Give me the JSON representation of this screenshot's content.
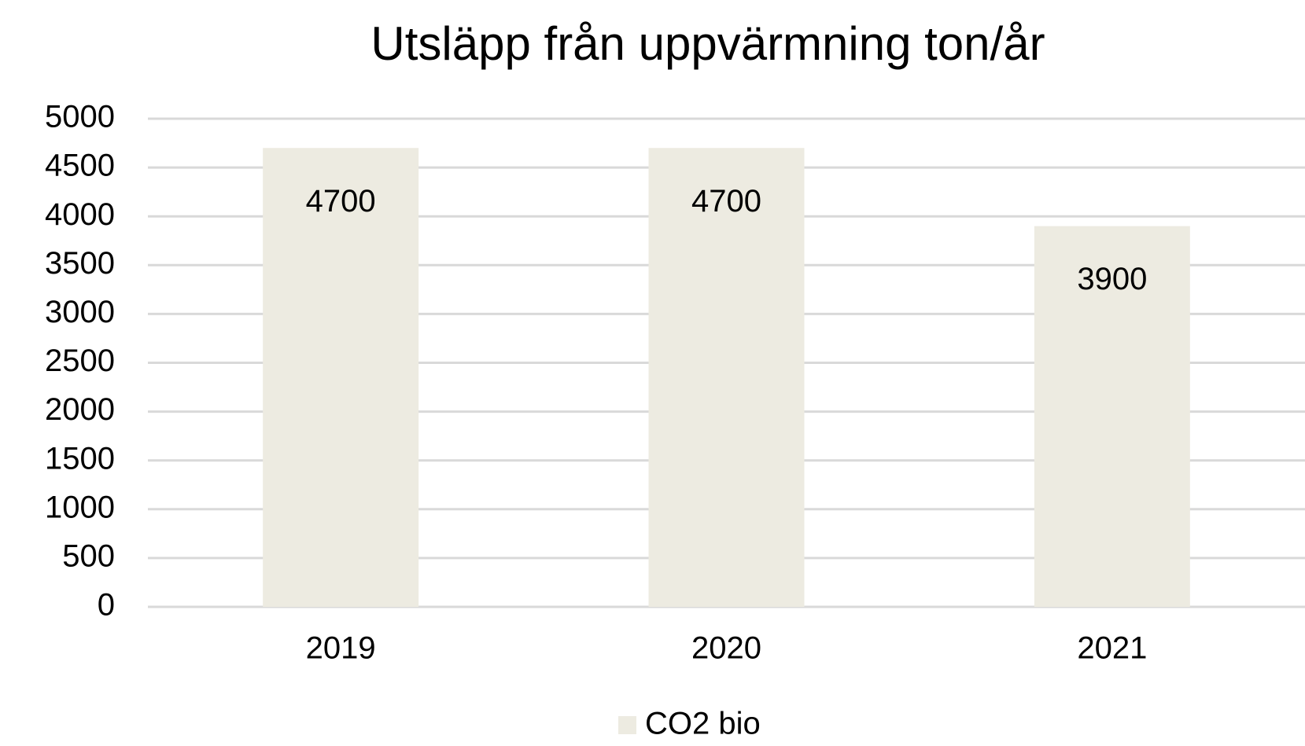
{
  "chart_data": {
    "type": "bar",
    "title": "Utsläpp från uppvärmning ton/år",
    "categories": [
      "2019",
      "2020",
      "2021"
    ],
    "series": [
      {
        "name": "CO2 bio",
        "color": "#edebe1",
        "values": [
          4700,
          4700,
          3900
        ]
      }
    ],
    "ylim": [
      0,
      5000
    ],
    "yticks": [
      0,
      500,
      1000,
      1500,
      2000,
      2500,
      3000,
      3500,
      4000,
      4500,
      5000
    ],
    "grid": true,
    "legend": "bottom",
    "data_labels": true
  }
}
